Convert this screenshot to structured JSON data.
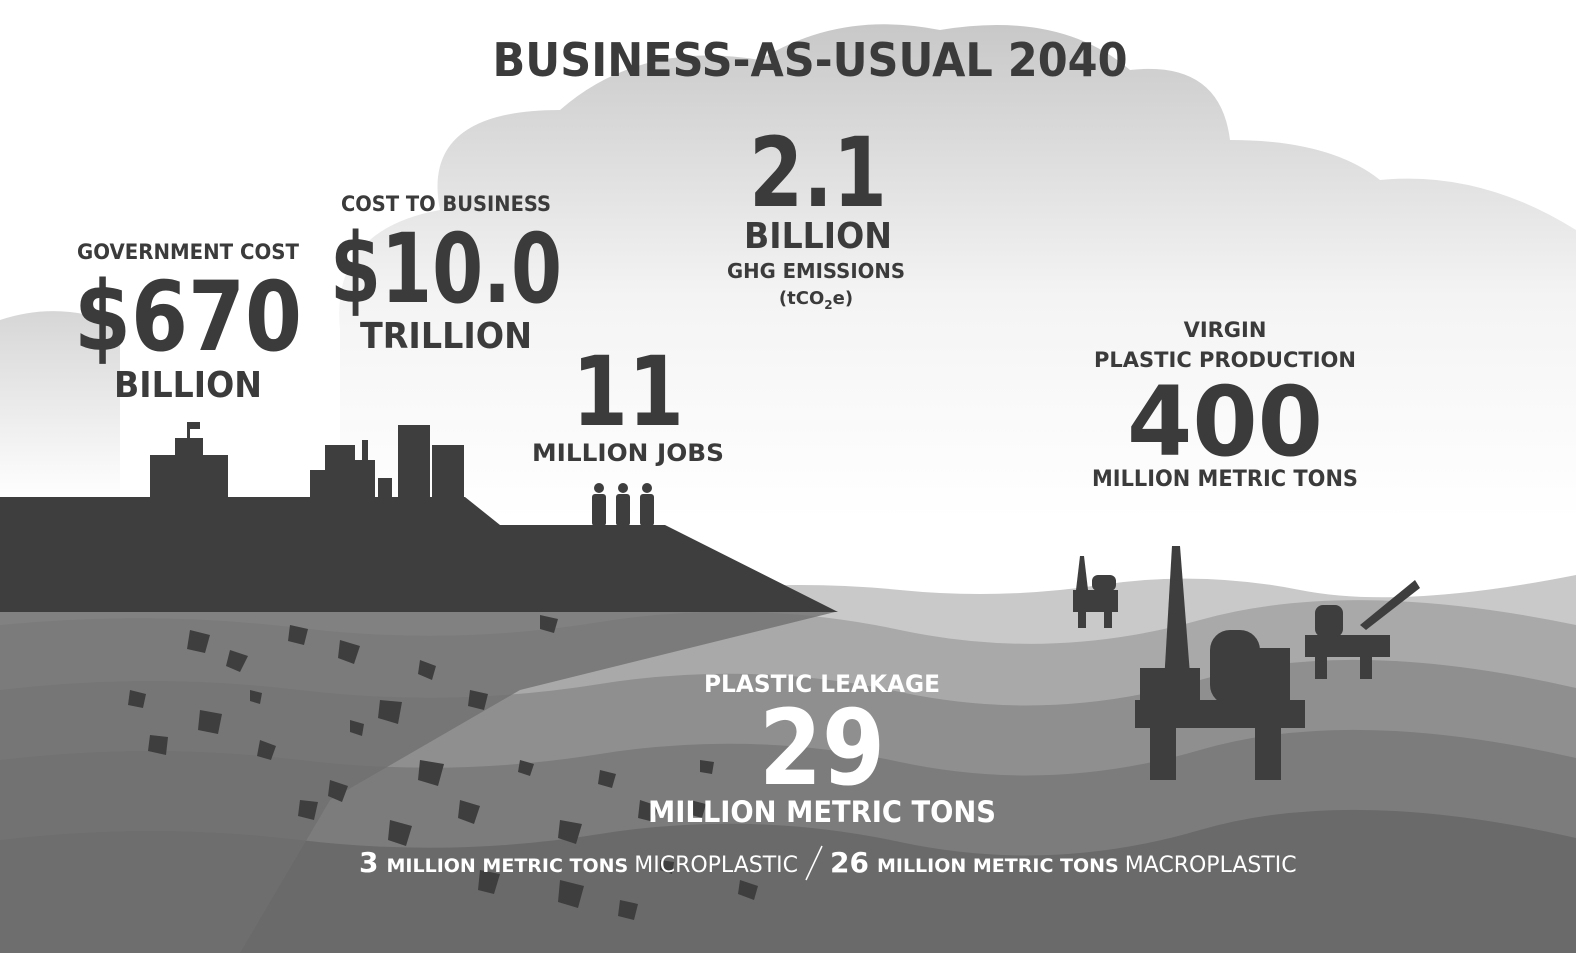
{
  "title": "BUSINESS-AS-USUAL 2040",
  "government_cost": {
    "label": "GOVERNMENT COST",
    "value": "$670",
    "unit": "BILLION"
  },
  "cost_to_business": {
    "label": "COST TO BUSINESS",
    "value": "$10.0",
    "unit": "TRILLION"
  },
  "ghg_emissions": {
    "value": "2.1",
    "unit": "BILLION",
    "label": "GHG EMISSIONS",
    "measure": [
      "(tCO",
      "2",
      "e)"
    ]
  },
  "jobs": {
    "value": "11",
    "unit": "MILLION JOBS"
  },
  "virgin_plastic": {
    "label": [
      "VIRGIN",
      "PLASTIC PRODUCTION"
    ],
    "value": "400",
    "unit": "MILLION METRIC TONS"
  },
  "plastic_leakage": {
    "label": "PLASTIC LEAKAGE",
    "value": "29",
    "unit": "MILLION METRIC TONS"
  },
  "breakdown": [
    {
      "value": "3",
      "unit": "MILLION METRIC TONS",
      "kind": "MICROPLASTIC"
    },
    {
      "value": "26",
      "unit": "MILLION METRIC TONS",
      "kind": "MACROPLASTIC"
    }
  ]
}
